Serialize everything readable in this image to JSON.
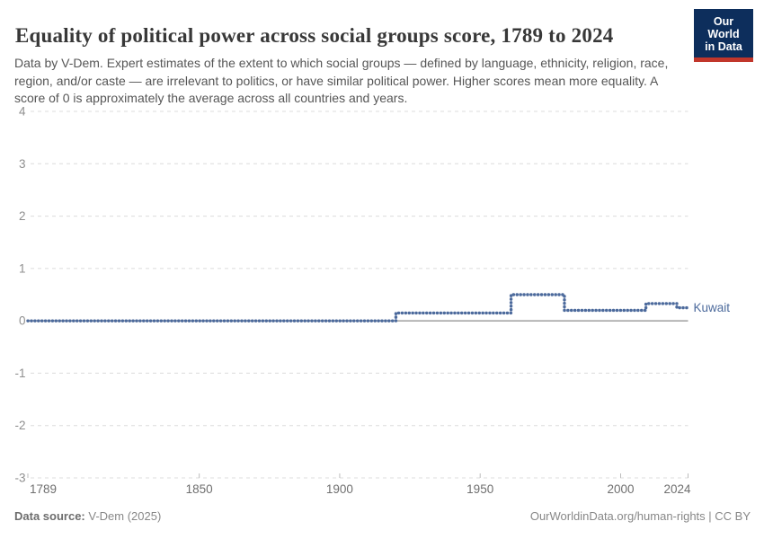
{
  "header": {
    "title": "Equality of political power across social groups score, 1789 to 2024",
    "subtitle": "Data by V-Dem. Expert estimates of the extent to which social groups — defined by language, ethnicity, religion, race, region, and/or caste — are irrelevant to politics, or have similar political power. Higher scores mean more equality. A score of 0 is approximately the average across all countries and years.",
    "logo": {
      "line1": "Our World",
      "line2": "in Data",
      "bg_color": "#0d2e5c",
      "accent_color": "#c1362b"
    }
  },
  "chart_data": {
    "type": "line",
    "title": "Equality of political power across social groups score, 1789 to 2024",
    "entity_label": "Kuwait",
    "line_style": "dotted",
    "line_color": "#4C6A9C",
    "grid": "dashed",
    "legend_position": "end-of-line",
    "x": {
      "min": 1789,
      "max": 2024,
      "ticks": [
        1789,
        1850,
        1900,
        1950,
        2000,
        2024
      ]
    },
    "y": {
      "min": -3,
      "max": 4,
      "ticks": [
        4,
        3,
        2,
        1,
        0,
        -1,
        -2,
        -3
      ]
    },
    "series": [
      {
        "name": "Kuwait",
        "color": "#4C6A9C",
        "steps": [
          {
            "from": 1789,
            "to": 1920,
            "value": 0
          },
          {
            "from": 1920,
            "to": 1961,
            "value": 0.15
          },
          {
            "from": 1961,
            "to": 1980,
            "value": 0.5
          },
          {
            "from": 1980,
            "to": 2009,
            "value": 0.2
          },
          {
            "from": 2009,
            "to": 2020,
            "value": 0.33
          },
          {
            "from": 2020,
            "to": 2024,
            "value": 0.25
          }
        ]
      }
    ]
  },
  "footer": {
    "source_label": "Data source:",
    "source_value": " V-Dem (2025)",
    "credit": "OurWorldinData.org/human-rights | CC BY"
  }
}
